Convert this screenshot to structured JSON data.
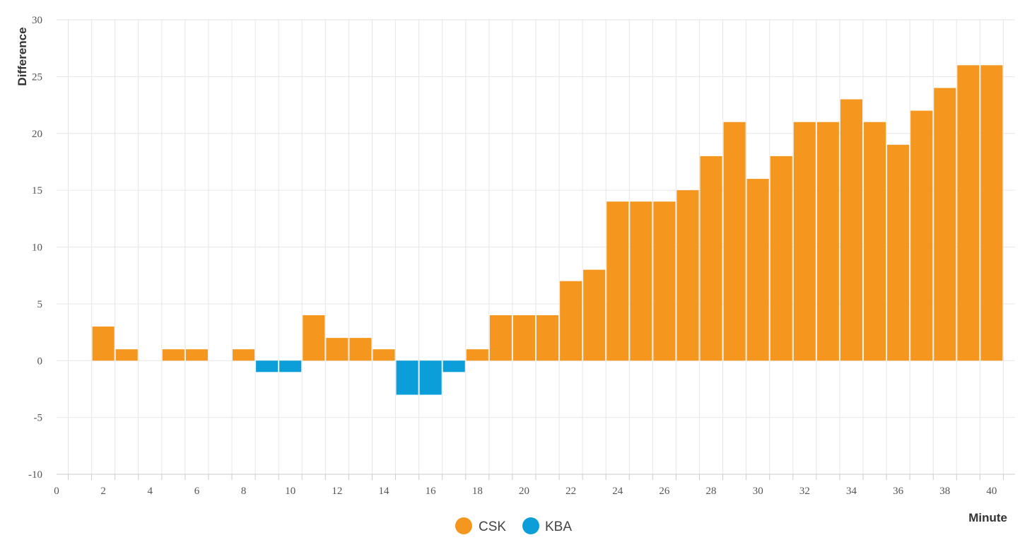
{
  "colors": {
    "csk": "#F5971E",
    "kba": "#0C9ED9",
    "grid": "#e6e6e6",
    "axis": "#cccccc"
  },
  "chart_data": {
    "type": "bar",
    "xlabel": "Minute",
    "ylabel": "Difference",
    "xlim": [
      0,
      41
    ],
    "ylim": [
      -10,
      30
    ],
    "xticks": [
      0,
      2,
      4,
      6,
      8,
      10,
      12,
      14,
      16,
      18,
      20,
      22,
      24,
      26,
      28,
      30,
      32,
      34,
      36,
      38,
      40
    ],
    "yticks": [
      30,
      25,
      20,
      15,
      10,
      5,
      0,
      -5,
      -10
    ],
    "grid": true,
    "legend_position": "bottom-center",
    "x": [
      1,
      2,
      3,
      4,
      5,
      6,
      7,
      8,
      9,
      10,
      11,
      12,
      13,
      14,
      15,
      16,
      17,
      18,
      19,
      20,
      21,
      22,
      23,
      24,
      25,
      26,
      27,
      28,
      29,
      30,
      31,
      32,
      33,
      34,
      35,
      36,
      37,
      38,
      39,
      40
    ],
    "values": [
      0,
      3,
      1,
      0,
      1,
      1,
      0,
      1,
      -1,
      -1,
      4,
      2,
      2,
      1,
      -3,
      -3,
      -1,
      1,
      4,
      4,
      4,
      7,
      8,
      14,
      14,
      14,
      15,
      18,
      21,
      16,
      18,
      21,
      21,
      23,
      21,
      19,
      22,
      24,
      26,
      26
    ],
    "series": [
      {
        "name": "CSK",
        "rule": "positive difference"
      },
      {
        "name": "KBA",
        "rule": "negative difference"
      }
    ]
  }
}
